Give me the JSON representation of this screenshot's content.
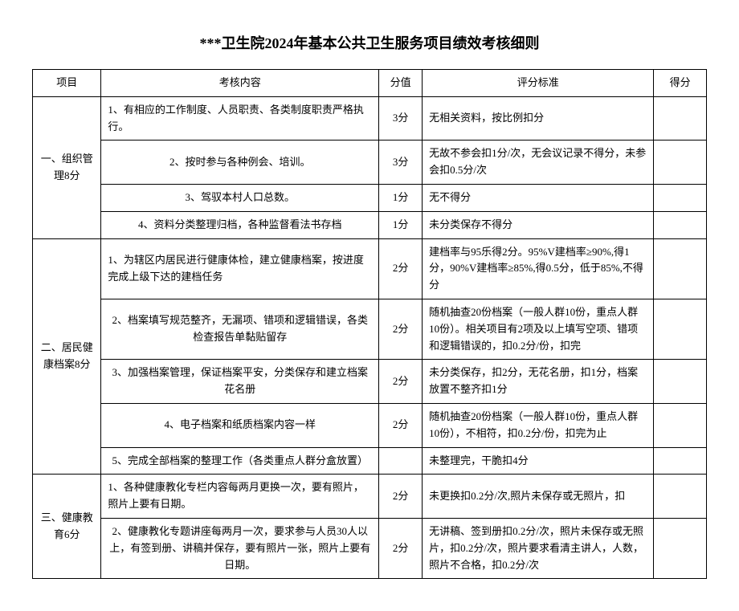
{
  "title": "***卫生院2024年基本公共卫生服务项目绩效考核细则",
  "head": {
    "proj": "项目",
    "content": "考核内容",
    "score": "分值",
    "std": "评分标准",
    "got": "得分"
  },
  "s1": {
    "name": "一、组织管理8分",
    "r1c": "1、有相应的工作制度、人员职责、各类制度职责严格执行。",
    "r1s": "3分",
    "r1d": "无相关资料，按比例扣分",
    "r2c": "2、按时参与各种例会、培训。",
    "r2s": "3分",
    "r2d": "无故不参会扣1分/次，无会议记录不得分，未参会扣0.5分/次",
    "r3c": "3、驾驭本村人口总数。",
    "r3s": "1分",
    "r3d": "无不得分",
    "r4c": "4、资料分类整理归档，各种监督看法书存档",
    "r4s": "1分",
    "r4d": "未分类保存不得分"
  },
  "s2": {
    "name": "二、居民健康档案8分",
    "r1c": "1、为辖区内居民进行健康体检，建立健康档案，按进度完成上级下达的建档任务",
    "r1s": "2分",
    "r1d": "建档率与95乐得2分。95%V建档率≥90%,得1分，90%V建档率≥85%,得0.5分，低于85%,不得分",
    "r2c": "2、档案填写规范整齐，无漏项、错项和逻辑错误，各类检查报告单黏贴留存",
    "r2s": "2分",
    "r2d": "随机抽查20份档案（一般人群10份，重点人群10份）。相关项目有2项及以上填写空项、错项和逻辑错误的，扣0.2分/份，扣完",
    "r3c": "3、加强档案管理，保证档案平安，分类保存和建立档案花名册",
    "r3s": "2分",
    "r3d": "未分类保存，扣2分，无花名册，扣1分，档案放置不整齐扣1分",
    "r4c": "4、电子档案和纸质档案内容一样",
    "r4s": "2分",
    "r4d": "随机抽查20份档案（一般人群10份，重点人群10份），不相符，扣0.2分/份，扣完为止",
    "r5c": "5、完成全部档案的整理工作（各类重点人群分盒放置）",
    "r5s": "",
    "r5d": "未整理完，干脆扣4分"
  },
  "s3": {
    "name": "三、健康教育6分",
    "r1c": "1、各种健康教化专栏内容每两月更换一次，要有照片，照片上要有日期。",
    "r1s": "2分",
    "r1d": "未更换扣0.2分/次,照片未保存或无照片，扣",
    "r2c": "2、健康教化专题讲座每两月一次，要求参与人员30人以上，有签到册、讲稿并保存，要有照片一张，照片上要有日期。",
    "r2s": "2分",
    "r2d": "无讲稿、签到册扣0.2分/次，照片未保存或无照片，扣0.2分/次，照片要求看清主讲人，人数，照片不合格，扣0.2分/次"
  }
}
